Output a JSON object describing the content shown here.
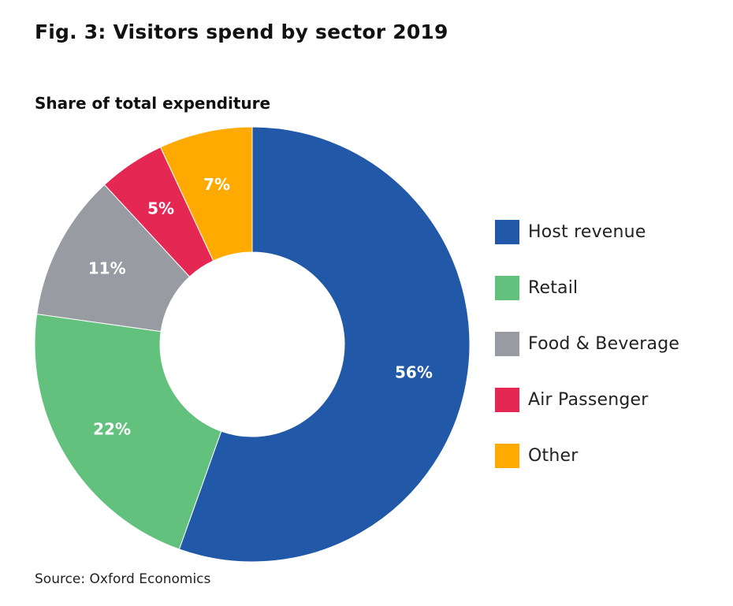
{
  "figure": {
    "title": "Fig. 3: Visitors spend by sector 2019",
    "subtitle": "Share of total expenditure",
    "source": "Source: Oxford Economics"
  },
  "chart_data": {
    "type": "pie",
    "variant": "donut",
    "title": "Fig. 3: Visitors spend by sector 2019",
    "subtitle": "Share of total expenditure",
    "unit": "%",
    "legend_position": "right",
    "start": "top (12 o'clock), clockwise",
    "slices": [
      {
        "name": "Host revenue",
        "value": 56,
        "label": "56%",
        "color": "#2159a8"
      },
      {
        "name": "Retail",
        "value": 22,
        "label": "22%",
        "color": "#61c17d"
      },
      {
        "name": "Food & Beverage",
        "value": 11,
        "label": "11%",
        "color": "#989ca2"
      },
      {
        "name": "Air Passenger",
        "value": 5,
        "label": "5%",
        "color": "#e52754"
      },
      {
        "name": "Other",
        "value": 7,
        "label": "7%",
        "color": "#ffaa00"
      }
    ]
  }
}
